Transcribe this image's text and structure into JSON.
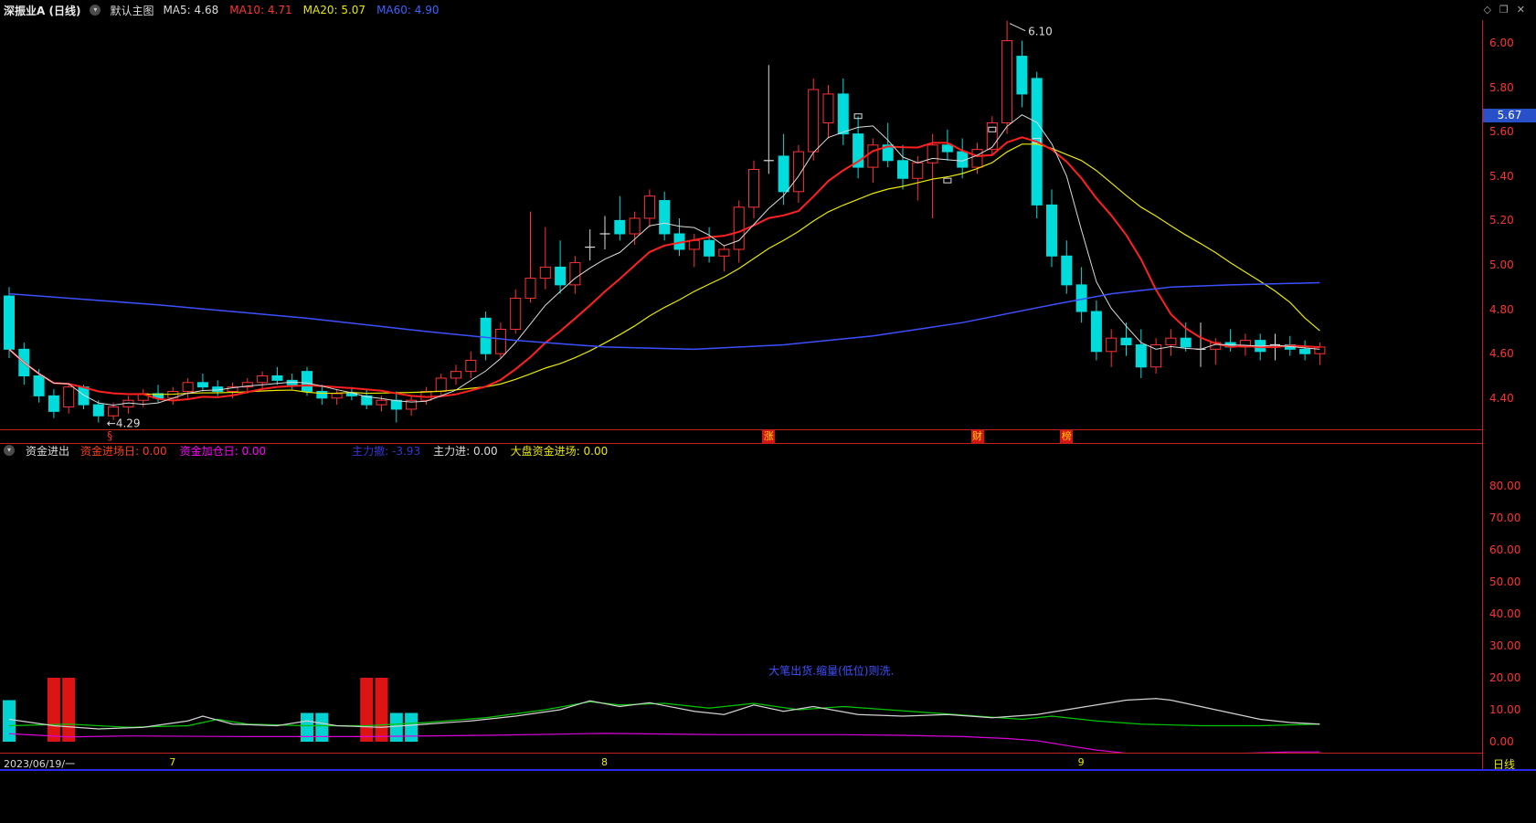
{
  "header": {
    "symbol": "深振业A (日线)",
    "main_overlay_label": "默认主图",
    "ma_items": [
      {
        "text": "MA5: 4.68",
        "color": "#dcdcdc"
      },
      {
        "text": "MA10: 4.71",
        "color": "#ff3232"
      },
      {
        "text": "MA20: 5.07",
        "color": "#e8e800"
      },
      {
        "text": "MA60: 4.90",
        "color": "#3c64ff"
      }
    ],
    "window_icons": [
      {
        "name": "pin-icon",
        "glyph": "◇"
      },
      {
        "name": "restore-window-icon",
        "glyph": "❐"
      },
      {
        "name": "close-icon",
        "glyph": "✕"
      }
    ]
  },
  "main_chart": {
    "y_axis_labels": [
      "6.00",
      "5.80",
      "5.60",
      "5.40",
      "5.20",
      "5.00",
      "4.80",
      "4.60",
      "4.40"
    ],
    "price_tag": {
      "text": "5.67",
      "value": 5.67,
      "bg_color": "#2850c8"
    },
    "annotations": [
      {
        "text": "6.10",
        "i": 67,
        "price": 6.1,
        "kind": "high"
      },
      {
        "text": "←4.29",
        "i": 6,
        "price": 4.29,
        "kind": "low"
      }
    ],
    "event_markers": [
      {
        "text": "§",
        "i": 7,
        "style": "plain"
      },
      {
        "text": "涨",
        "i": 51,
        "style": "flag"
      },
      {
        "text": "财",
        "i": 65,
        "style": "flag"
      },
      {
        "text": "榜",
        "i": 71,
        "style": "flag"
      }
    ],
    "tick_markers": [
      {
        "i": 57,
        "p": 5.67
      },
      {
        "i": 63,
        "p": 5.38
      },
      {
        "i": 66,
        "p": 5.61
      },
      {
        "i": 69,
        "p": 5.56
      }
    ]
  },
  "indicator_panel": {
    "title": "资金进出",
    "header_items": [
      {
        "text": "资金进场日: 0.00",
        "color": "#ff3c1e"
      },
      {
        "text": "资金加仓日: 0.00",
        "color": "#ff00ff"
      },
      {
        "text": "主力撤: -3.93",
        "color": "#3636d8"
      },
      {
        "text": "主力进: 0.00",
        "color": "#dcdcdc"
      },
      {
        "text": "大盘资金进场: 0.00",
        "color": "#e8e800"
      }
    ],
    "y_axis_labels": [
      "80.00",
      "70.00",
      "60.00",
      "50.00",
      "40.00",
      "30.00",
      "20.00",
      "10.00",
      "0.00"
    ],
    "note": {
      "text": "大笔出货.缩量(低位)则洗.",
      "i": 51,
      "v": 21,
      "color": "#4050ff"
    }
  },
  "timeline": {
    "date_label": "2023/06/19/一",
    "month_markers": [
      {
        "text": "7",
        "i": 11
      },
      {
        "text": "8",
        "i": 40
      },
      {
        "text": "9",
        "i": 72
      }
    ],
    "period_label": "日线"
  },
  "chart_data": [
    {
      "type": "candlestick",
      "title": "深振业A 日线K线",
      "ylim": [
        4.26,
        6.1
      ],
      "y_ticks": [
        6.0,
        5.8,
        5.6,
        5.4,
        5.2,
        5.0,
        4.8,
        4.6,
        4.4
      ],
      "high_annotation": 6.1,
      "low_annotation": 4.29,
      "colors": {
        "up": "#ff3232",
        "down": "#00dcdc",
        "doji": "#dcdcdc",
        "ma5": "#dcdcdc",
        "ma10": "#ff2020",
        "ma20": "#e8e800",
        "ma60": "#3c50ff"
      },
      "candles_ohlc": [
        [
          4.86,
          4.9,
          4.58,
          4.62
        ],
        [
          4.62,
          4.65,
          4.46,
          4.5
        ],
        [
          4.5,
          4.53,
          4.38,
          4.41
        ],
        [
          4.41,
          4.44,
          4.31,
          4.34
        ],
        [
          4.36,
          4.47,
          4.33,
          4.45
        ],
        [
          4.45,
          4.46,
          4.35,
          4.37
        ],
        [
          4.37,
          4.39,
          4.29,
          4.32
        ],
        [
          4.32,
          4.38,
          4.3,
          4.36
        ],
        [
          4.36,
          4.41,
          4.33,
          4.39
        ],
        [
          4.39,
          4.44,
          4.36,
          4.42
        ],
        [
          4.42,
          4.46,
          4.38,
          4.4
        ],
        [
          4.4,
          4.45,
          4.37,
          4.43
        ],
        [
          4.43,
          4.49,
          4.4,
          4.47
        ],
        [
          4.47,
          4.51,
          4.43,
          4.45
        ],
        [
          4.45,
          4.48,
          4.41,
          4.43
        ],
        [
          4.43,
          4.47,
          4.4,
          4.45
        ],
        [
          4.45,
          4.49,
          4.42,
          4.47
        ],
        [
          4.47,
          4.52,
          4.44,
          4.5
        ],
        [
          4.5,
          4.54,
          4.46,
          4.48
        ],
        [
          4.48,
          4.51,
          4.44,
          4.46
        ],
        [
          4.52,
          4.54,
          4.41,
          4.43
        ],
        [
          4.43,
          4.46,
          4.37,
          4.4
        ],
        [
          4.4,
          4.44,
          4.37,
          4.42
        ],
        [
          4.42,
          4.45,
          4.39,
          4.41
        ],
        [
          4.41,
          4.44,
          4.35,
          4.37
        ],
        [
          4.37,
          4.41,
          4.34,
          4.39
        ],
        [
          4.39,
          4.43,
          4.29,
          4.35
        ],
        [
          4.35,
          4.41,
          4.32,
          4.39
        ],
        [
          4.39,
          4.45,
          4.37,
          4.43
        ],
        [
          4.43,
          4.51,
          4.41,
          4.49
        ],
        [
          4.49,
          4.55,
          4.46,
          4.52
        ],
        [
          4.52,
          4.61,
          4.49,
          4.57
        ],
        [
          4.76,
          4.79,
          4.57,
          4.6
        ],
        [
          4.6,
          4.74,
          4.58,
          4.71
        ],
        [
          4.71,
          4.89,
          4.69,
          4.85
        ],
        [
          4.85,
          5.24,
          4.83,
          4.94
        ],
        [
          4.94,
          5.17,
          4.89,
          4.99
        ],
        [
          4.99,
          5.11,
          4.87,
          4.91
        ],
        [
          4.91,
          5.04,
          4.87,
          5.01
        ],
        [
          5.08,
          5.16,
          5.02,
          5.08
        ],
        [
          5.14,
          5.22,
          5.07,
          5.14
        ],
        [
          5.2,
          5.31,
          5.11,
          5.14
        ],
        [
          5.14,
          5.24,
          5.09,
          5.21
        ],
        [
          5.21,
          5.34,
          5.17,
          5.31
        ],
        [
          5.29,
          5.33,
          5.11,
          5.14
        ],
        [
          5.14,
          5.21,
          5.04,
          5.07
        ],
        [
          5.07,
          5.14,
          4.99,
          5.11
        ],
        [
          5.11,
          5.17,
          5.01,
          5.04
        ],
        [
          5.04,
          5.09,
          4.97,
          5.07
        ],
        [
          5.07,
          5.29,
          5.01,
          5.26
        ],
        [
          5.26,
          5.47,
          5.21,
          5.43
        ],
        [
          5.47,
          5.9,
          5.41,
          5.47
        ],
        [
          5.49,
          5.59,
          5.27,
          5.33
        ],
        [
          5.33,
          5.54,
          5.28,
          5.51
        ],
        [
          5.51,
          5.84,
          5.47,
          5.79
        ],
        [
          5.64,
          5.81,
          5.57,
          5.77
        ],
        [
          5.77,
          5.84,
          5.54,
          5.59
        ],
        [
          5.59,
          5.67,
          5.39,
          5.44
        ],
        [
          5.44,
          5.57,
          5.37,
          5.54
        ],
        [
          5.54,
          5.64,
          5.44,
          5.47
        ],
        [
          5.47,
          5.54,
          5.34,
          5.39
        ],
        [
          5.39,
          5.49,
          5.29,
          5.46
        ],
        [
          5.46,
          5.59,
          5.21,
          5.54
        ],
        [
          5.54,
          5.61,
          5.47,
          5.51
        ],
        [
          5.51,
          5.57,
          5.39,
          5.44
        ],
        [
          5.44,
          5.55,
          5.41,
          5.52
        ],
        [
          5.52,
          5.67,
          5.49,
          5.64
        ],
        [
          5.64,
          6.1,
          5.59,
          6.01
        ],
        [
          5.94,
          6.01,
          5.71,
          5.77
        ],
        [
          5.84,
          5.87,
          5.21,
          5.27
        ],
        [
          5.27,
          5.34,
          4.99,
          5.04
        ],
        [
          5.04,
          5.11,
          4.87,
          4.91
        ],
        [
          4.91,
          4.99,
          4.74,
          4.79
        ],
        [
          4.79,
          4.84,
          4.57,
          4.61
        ],
        [
          4.61,
          4.71,
          4.54,
          4.67
        ],
        [
          4.67,
          4.74,
          4.59,
          4.64
        ],
        [
          4.64,
          4.71,
          4.49,
          4.54
        ],
        [
          4.54,
          4.67,
          4.51,
          4.64
        ],
        [
          4.64,
          4.71,
          4.59,
          4.67
        ],
        [
          4.67,
          4.74,
          4.61,
          4.63
        ],
        [
          4.62,
          4.74,
          4.54,
          4.62
        ],
        [
          4.62,
          4.67,
          4.55,
          4.65
        ],
        [
          4.65,
          4.71,
          4.61,
          4.63
        ],
        [
          4.63,
          4.69,
          4.59,
          4.66
        ],
        [
          4.66,
          4.69,
          4.57,
          4.61
        ],
        [
          4.64,
          4.69,
          4.57,
          4.64
        ],
        [
          4.64,
          4.68,
          4.59,
          4.62
        ],
        [
          4.62,
          4.66,
          4.57,
          4.6
        ],
        [
          4.6,
          4.65,
          4.55,
          4.63
        ]
      ],
      "ma60_points": [
        [
          0,
          4.87
        ],
        [
          10,
          4.82
        ],
        [
          20,
          4.76
        ],
        [
          28,
          4.7
        ],
        [
          34,
          4.66
        ],
        [
          40,
          4.63
        ],
        [
          46,
          4.62
        ],
        [
          52,
          4.64
        ],
        [
          58,
          4.68
        ],
        [
          64,
          4.74
        ],
        [
          70,
          4.82
        ],
        [
          74,
          4.87
        ],
        [
          78,
          4.9
        ],
        [
          82,
          4.91
        ],
        [
          88,
          4.92
        ]
      ]
    },
    {
      "type": "bar",
      "title": "资金进出指标",
      "ylim": [
        -6,
        80
      ],
      "y_ticks": [
        80,
        70,
        60,
        50,
        40,
        30,
        20,
        10,
        0
      ],
      "colors": {
        "green": "#00c800",
        "white": "#d2d2d2",
        "magenta": "#dc00dc",
        "bar_red": "#dc1414",
        "bar_cyan": "#00d2d2"
      },
      "bars": [
        {
          "i": 0,
          "v": 13,
          "color": "cyan"
        },
        {
          "i": 3,
          "v": 20,
          "color": "red"
        },
        {
          "i": 4,
          "v": 20,
          "color": "red"
        },
        {
          "i": 20,
          "v": 9,
          "color": "cyan"
        },
        {
          "i": 21,
          "v": 9,
          "color": "cyan"
        },
        {
          "i": 24,
          "v": 20,
          "color": "red"
        },
        {
          "i": 25,
          "v": 20,
          "color": "red"
        },
        {
          "i": 26,
          "v": 9,
          "color": "cyan"
        },
        {
          "i": 27,
          "v": 9,
          "color": "cyan"
        }
      ],
      "green_points": [
        [
          0,
          5
        ],
        [
          4,
          5.5
        ],
        [
          8,
          4.5
        ],
        [
          12,
          5
        ],
        [
          14,
          7
        ],
        [
          16,
          5.5
        ],
        [
          20,
          5
        ],
        [
          24,
          5
        ],
        [
          28,
          6
        ],
        [
          32,
          7.5
        ],
        [
          36,
          10
        ],
        [
          39,
          12.5
        ],
        [
          41,
          11.5
        ],
        [
          44,
          12
        ],
        [
          47,
          10.5
        ],
        [
          50,
          12
        ],
        [
          53,
          10
        ],
        [
          56,
          11
        ],
        [
          59,
          10
        ],
        [
          62,
          9
        ],
        [
          65,
          8
        ],
        [
          68,
          7
        ],
        [
          70,
          8
        ],
        [
          73,
          6.5
        ],
        [
          76,
          5.5
        ],
        [
          80,
          5
        ],
        [
          84,
          5
        ],
        [
          88,
          5.5
        ]
      ],
      "white_points": [
        [
          0,
          7
        ],
        [
          3,
          5
        ],
        [
          6,
          4
        ],
        [
          9,
          4.5
        ],
        [
          12,
          6.5
        ],
        [
          13,
          8
        ],
        [
          15,
          5.5
        ],
        [
          18,
          5
        ],
        [
          20,
          6.5
        ],
        [
          22,
          5
        ],
        [
          25,
          4.5
        ],
        [
          28,
          5.5
        ],
        [
          31,
          6.5
        ],
        [
          34,
          8
        ],
        [
          37,
          10
        ],
        [
          39,
          12.8
        ],
        [
          41,
          11
        ],
        [
          43,
          12.2
        ],
        [
          46,
          9.5
        ],
        [
          48,
          8.5
        ],
        [
          50,
          11.5
        ],
        [
          52,
          9.5
        ],
        [
          54,
          11
        ],
        [
          57,
          8.5
        ],
        [
          60,
          8
        ],
        [
          63,
          8.5
        ],
        [
          66,
          7.5
        ],
        [
          69,
          8.5
        ],
        [
          71,
          10
        ],
        [
          73,
          11.5
        ],
        [
          75,
          13
        ],
        [
          77,
          13.5
        ],
        [
          78,
          13
        ],
        [
          80,
          11
        ],
        [
          82,
          9
        ],
        [
          84,
          7
        ],
        [
          86,
          6
        ],
        [
          88,
          5.5
        ]
      ],
      "magenta_points": [
        [
          0,
          2.5
        ],
        [
          4,
          1.5
        ],
        [
          8,
          1.8
        ],
        [
          16,
          1.6
        ],
        [
          24,
          1.6
        ],
        [
          32,
          2
        ],
        [
          40,
          2.6
        ],
        [
          48,
          2.2
        ],
        [
          56,
          2.2
        ],
        [
          60,
          2
        ],
        [
          64,
          1.6
        ],
        [
          67,
          1
        ],
        [
          69,
          0.3
        ],
        [
          71,
          -1.2
        ],
        [
          73,
          -2.6
        ],
        [
          75,
          -3.6
        ],
        [
          77,
          -4.2
        ],
        [
          80,
          -4
        ],
        [
          83,
          -3.6
        ],
        [
          86,
          -3.2
        ],
        [
          88,
          -3.2
        ]
      ]
    }
  ]
}
